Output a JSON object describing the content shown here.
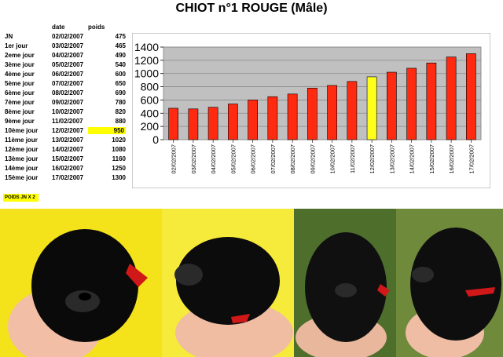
{
  "title": "CHIOT n°1 ROUGE (Mâle)",
  "table": {
    "headers": {
      "date": "date",
      "weight": "poids"
    },
    "rows": [
      {
        "label": "JN",
        "date": "02/02/2007",
        "weight": "475"
      },
      {
        "label": "1er jour",
        "date": "03/02/2007",
        "weight": "465"
      },
      {
        "label": "2eme jour",
        "date": "04/02/2007",
        "weight": "490"
      },
      {
        "label": "3ème jour",
        "date": "05/02/2007",
        "weight": "540"
      },
      {
        "label": "4ème jour",
        "date": "06/02/2007",
        "weight": "600"
      },
      {
        "label": "5ème jour",
        "date": "07/02/2007",
        "weight": "650"
      },
      {
        "label": "6ème jour",
        "date": "08/02/2007",
        "weight": "690"
      },
      {
        "label": "7ème jour",
        "date": "09/02/2007",
        "weight": "780"
      },
      {
        "label": "8ème jour",
        "date": "10/02/2007",
        "weight": "820"
      },
      {
        "label": "9ème jour",
        "date": "11/02/2007",
        "weight": "880"
      },
      {
        "label": "10ème jour",
        "date": "12/02/2007",
        "weight": "950",
        "highlight": true
      },
      {
        "label": "11ème jour",
        "date": "13/02/2007",
        "weight": "1020"
      },
      {
        "label": "12ème jour",
        "date": "14/02/2007",
        "weight": "1080"
      },
      {
        "label": "13ème jour",
        "date": "15/02/2007",
        "weight": "1160"
      },
      {
        "label": "14ème jour",
        "date": "16/02/2007",
        "weight": "1250"
      },
      {
        "label": "15ème jour",
        "date": "17/02/2007",
        "weight": "1300"
      }
    ]
  },
  "note": "POIDS JN X 2",
  "chart_data": {
    "type": "bar",
    "categories": [
      "02/02/2007",
      "03/02/2007",
      "04/02/2007",
      "05/02/2007",
      "06/02/2007",
      "07/02/2007",
      "08/02/2007",
      "09/02/2007",
      "10/02/2007",
      "11/02/2007",
      "12/02/2007",
      "13/02/2007",
      "14/02/2007",
      "15/02/2007",
      "16/02/2007",
      "17/02/2007"
    ],
    "values": [
      475,
      465,
      490,
      540,
      600,
      650,
      690,
      780,
      820,
      880,
      950,
      1020,
      1080,
      1160,
      1250,
      1300
    ],
    "highlight_index": 10,
    "ylim": [
      0,
      1400
    ],
    "yticks": [
      0,
      200,
      400,
      600,
      800,
      1000,
      1200,
      1400
    ],
    "grid": true,
    "colors": {
      "bar": "#ff2a10",
      "highlight": "#ffff1a",
      "plot_bg": "#c0c0c0",
      "outline": "#000000"
    }
  },
  "photos": [
    {
      "name": "puppy-photo-1",
      "background": "#f4e21a",
      "puppy": "#0a0a0a",
      "collar": "#d01818",
      "hand": "#f2bfa6"
    },
    {
      "name": "puppy-photo-2",
      "background": "#f6ea3a",
      "puppy": "#0c0c0c",
      "collar": "#d01818",
      "hand": "#f0bca2"
    },
    {
      "name": "puppy-photo-3",
      "background": "#4e6e2c",
      "puppy": "#101010",
      "collar": "#d01818",
      "hand": "#e8b79c"
    },
    {
      "name": "puppy-photo-4",
      "background": "#6e8a3a",
      "puppy": "#0e0e0e",
      "collar": "#d01818",
      "hand": "#eebda4"
    }
  ]
}
